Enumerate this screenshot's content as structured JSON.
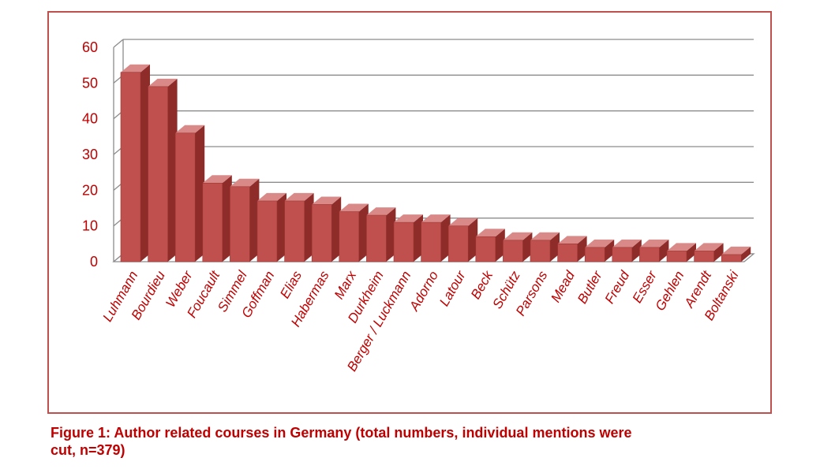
{
  "chart_data": {
    "type": "bar",
    "title": "",
    "xlabel": "",
    "ylabel": "",
    "ylim": [
      0,
      60
    ],
    "yticks": [
      0,
      10,
      20,
      30,
      40,
      50,
      60
    ],
    "categories": [
      "Luhmann",
      "Bourdieu",
      "Weber",
      "Foucault",
      "Simmel",
      "Goffman",
      "Elias",
      "Habermas",
      "Marx",
      "Durkheim",
      "Berger / Luckmann",
      "Adorno",
      "Latour",
      "Beck",
      "Schütz",
      "Parsons",
      "Mead",
      "Butler",
      "Freud",
      "Esser",
      "Gehlen",
      "Arendt",
      "Boltanski"
    ],
    "values": [
      53,
      49,
      36,
      22,
      21,
      17,
      17,
      16,
      14,
      13,
      11,
      11,
      10,
      7,
      6,
      6,
      5,
      4,
      4,
      4,
      3,
      3,
      2
    ],
    "grid": true,
    "legend": "none",
    "colors": {
      "bar_front": "#c0504d",
      "bar_side": "#8e2c2a",
      "bar_top": "#d98a88",
      "tick_label": "#c00000",
      "axis_label": "#c00000",
      "grid": "#8c8c8c",
      "frame": "#c0504d"
    }
  },
  "caption": {
    "line1": "Figure 1: Author related courses in Germany (total numbers, individual mentions were",
    "line2": "cut, n=379)"
  }
}
